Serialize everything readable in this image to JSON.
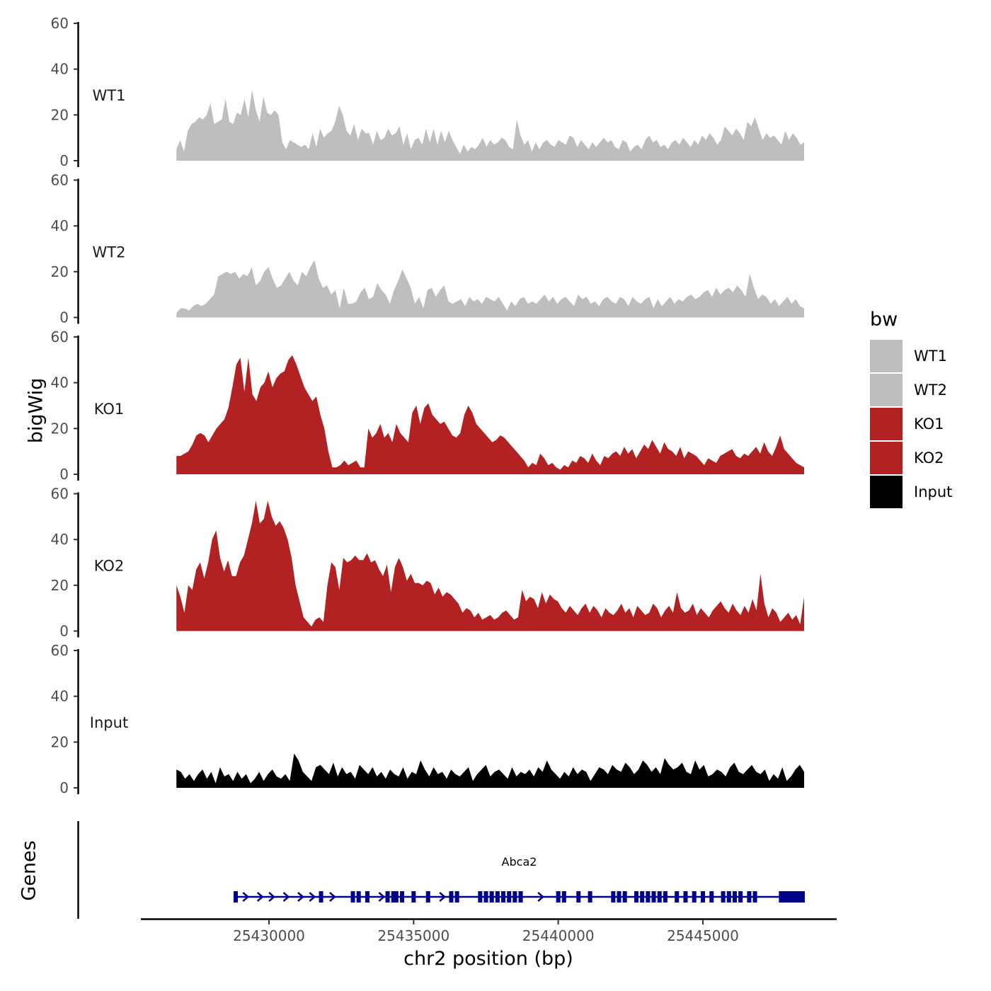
{
  "chart_data": {
    "type": "area",
    "ylabel": "bigWig",
    "xlabel": "chr2 position (bp)",
    "ylim": [
      0,
      60
    ],
    "yticks": [
      0,
      20,
      40,
      60
    ],
    "xlim": [
      25426000,
      25450000
    ],
    "xticks": [
      25430000,
      25435000,
      25440000,
      25445000
    ],
    "xtick_labels": [
      "25430000",
      "25435000",
      "25440000",
      "25445000"
    ],
    "region": [
      25426800,
      25448500
    ],
    "legend": {
      "title": "bw",
      "entries": [
        {
          "label": "WT1",
          "color": "#bebebe"
        },
        {
          "label": "WT2",
          "color": "#bebebe"
        },
        {
          "label": "KO1",
          "color": "#b22222"
        },
        {
          "label": "KO2",
          "color": "#b22222"
        },
        {
          "label": "Input",
          "color": "#000000"
        }
      ]
    },
    "series": [
      {
        "name": "WT1",
        "color": "#bebebe",
        "values": [
          5,
          9,
          4,
          13,
          16,
          17,
          19,
          18,
          20,
          25,
          16,
          17,
          18,
          27,
          17,
          16,
          21,
          20,
          27,
          19,
          31,
          22,
          17,
          28,
          21,
          20,
          22,
          20,
          8,
          5,
          9,
          8,
          7,
          6,
          7,
          5,
          12,
          6,
          14,
          10,
          12,
          13,
          17,
          24,
          20,
          13,
          11,
          16,
          9,
          14,
          12,
          12,
          7,
          13,
          9,
          10,
          14,
          11,
          12,
          15,
          7,
          12,
          5,
          9,
          10,
          7,
          14,
          8,
          14,
          7,
          13,
          8,
          13,
          9,
          6,
          3,
          7,
          4,
          6,
          5,
          7,
          10,
          6,
          9,
          7,
          8,
          10,
          9,
          6,
          5,
          18,
          11,
          7,
          9,
          4,
          8,
          5,
          8,
          9,
          7,
          6,
          9,
          8,
          7,
          11,
          10,
          6,
          9,
          7,
          5,
          8,
          6,
          8,
          10,
          8,
          9,
          6,
          5,
          9,
          8,
          4,
          6,
          7,
          5,
          9,
          11,
          8,
          9,
          6,
          7,
          5,
          8,
          9,
          7,
          10,
          8,
          6,
          9,
          7,
          11,
          9,
          12,
          10,
          7,
          9,
          15,
          13,
          11,
          14,
          12,
          9,
          17,
          15,
          19,
          14,
          9,
          12,
          10,
          11,
          9,
          7,
          13,
          9,
          12,
          10,
          7,
          8
        ]
      },
      {
        "name": "WT2",
        "color": "#bebebe",
        "values": [
          2,
          4,
          4,
          3,
          5,
          6,
          5,
          6,
          8,
          10,
          18,
          19,
          20,
          19,
          20,
          17,
          19,
          18,
          22,
          14,
          16,
          20,
          22,
          17,
          13,
          14,
          17,
          20,
          16,
          14,
          20,
          18,
          22,
          25,
          17,
          13,
          14,
          10,
          12,
          4,
          13,
          6,
          6,
          7,
          11,
          13,
          8,
          9,
          15,
          12,
          10,
          6,
          12,
          16,
          21,
          17,
          13,
          6,
          9,
          4,
          12,
          13,
          9,
          12,
          14,
          7,
          6,
          7,
          8,
          5,
          9,
          7,
          8,
          6,
          9,
          8,
          7,
          9,
          6,
          3,
          7,
          5,
          8,
          9,
          6,
          7,
          6,
          8,
          10,
          7,
          9,
          6,
          8,
          9,
          7,
          5,
          10,
          8,
          9,
          6,
          7,
          5,
          8,
          9,
          7,
          6,
          9,
          8,
          5,
          9,
          7,
          6,
          8,
          9,
          4,
          8,
          5,
          7,
          9,
          6,
          8,
          7,
          9,
          10,
          8,
          9,
          11,
          12,
          9,
          13,
          10,
          12,
          13,
          11,
          14,
          12,
          9,
          19,
          13,
          8,
          10,
          9,
          6,
          8,
          5,
          7,
          9,
          6,
          8,
          5,
          4
        ]
      },
      {
        "name": "KO1",
        "color": "#b22222",
        "values": [
          8,
          8,
          9,
          10,
          13,
          17,
          18,
          17,
          14,
          17,
          20,
          22,
          24,
          29,
          38,
          48,
          51,
          36,
          51,
          35,
          32,
          38,
          40,
          45,
          38,
          42,
          44,
          45,
          50,
          52,
          48,
          43,
          38,
          35,
          32,
          34,
          26,
          20,
          10,
          3,
          3,
          4,
          6,
          4,
          5,
          6,
          3,
          3,
          20,
          16,
          18,
          22,
          16,
          18,
          14,
          22,
          18,
          16,
          14,
          27,
          30,
          22,
          29,
          31,
          26,
          24,
          22,
          23,
          20,
          17,
          16,
          18,
          26,
          30,
          27,
          22,
          20,
          18,
          16,
          14,
          15,
          17,
          16,
          14,
          12,
          10,
          8,
          6,
          3,
          5,
          4,
          9,
          7,
          4,
          5,
          3,
          2,
          4,
          3,
          6,
          5,
          8,
          7,
          5,
          9,
          6,
          4,
          8,
          7,
          9,
          10,
          8,
          12,
          9,
          11,
          7,
          10,
          13,
          11,
          15,
          12,
          9,
          14,
          11,
          10,
          8,
          12,
          7,
          10,
          9,
          8,
          6,
          4,
          7,
          6,
          5,
          8,
          9,
          10,
          11,
          8,
          7,
          9,
          8,
          10,
          12,
          9,
          14,
          10,
          8,
          12,
          17,
          11,
          9,
          7,
          5,
          4,
          3
        ]
      },
      {
        "name": "KO2",
        "color": "#b22222",
        "values": [
          20,
          15,
          8,
          20,
          18,
          27,
          30,
          23,
          30,
          40,
          44,
          32,
          26,
          31,
          24,
          24,
          30,
          33,
          40,
          47,
          57,
          47,
          49,
          57,
          50,
          46,
          48,
          45,
          40,
          32,
          20,
          13,
          6,
          4,
          2,
          5,
          6,
          4,
          20,
          30,
          28,
          18,
          32,
          30,
          31,
          33,
          31,
          31,
          34,
          30,
          31,
          27,
          24,
          29,
          17,
          28,
          32,
          28,
          22,
          25,
          21,
          21,
          20,
          22,
          21,
          16,
          19,
          15,
          17,
          16,
          14,
          12,
          8,
          10,
          9,
          6,
          8,
          5,
          6,
          7,
          5,
          6,
          8,
          9,
          7,
          5,
          6,
          18,
          13,
          15,
          14,
          10,
          17,
          12,
          16,
          14,
          13,
          10,
          8,
          11,
          9,
          7,
          10,
          12,
          8,
          11,
          9,
          6,
          10,
          8,
          7,
          9,
          12,
          8,
          10,
          6,
          11,
          9,
          7,
          8,
          12,
          10,
          6,
          9,
          11,
          8,
          17,
          10,
          8,
          9,
          12,
          7,
          10,
          8,
          6,
          9,
          11,
          13,
          10,
          8,
          12,
          9,
          7,
          11,
          8,
          14,
          9,
          25,
          12,
          6,
          10,
          8,
          4,
          6,
          8,
          5,
          7,
          3,
          15
        ]
      },
      {
        "name": "Input",
        "color": "#000000",
        "values": [
          8,
          7,
          4,
          6,
          3,
          6,
          8,
          4,
          7,
          2,
          9,
          5,
          6,
          3,
          7,
          4,
          6,
          2,
          4,
          7,
          3,
          6,
          8,
          5,
          4,
          6,
          3,
          15,
          12,
          7,
          5,
          3,
          9,
          10,
          8,
          6,
          11,
          5,
          9,
          6,
          7,
          4,
          10,
          8,
          6,
          9,
          5,
          7,
          4,
          8,
          6,
          5,
          9,
          4,
          7,
          6,
          12,
          8,
          5,
          9,
          6,
          7,
          4,
          8,
          6,
          5,
          7,
          9,
          3,
          6,
          8,
          10,
          5,
          7,
          8,
          6,
          4,
          9,
          5,
          7,
          6,
          8,
          5,
          9,
          7,
          12,
          8,
          6,
          4,
          7,
          5,
          9,
          6,
          8,
          7,
          3,
          6,
          9,
          8,
          6,
          10,
          8,
          7,
          11,
          9,
          6,
          8,
          12,
          10,
          7,
          9,
          6,
          13,
          10,
          8,
          9,
          11,
          7,
          6,
          12,
          8,
          10,
          5,
          6,
          8,
          7,
          5,
          9,
          11,
          7,
          6,
          8,
          10,
          7,
          6,
          8,
          3,
          6,
          4,
          9,
          3,
          5,
          8,
          10,
          7
        ]
      }
    ],
    "genes": [
      {
        "name": "Abca2",
        "strand": "+",
        "start": 25428800,
        "end": 25448500,
        "exons": [
          25428850,
          25431800,
          25432900,
          25433100,
          25433400,
          25434100,
          25434300,
          25434400,
          25434600,
          25435000,
          25435500,
          25436300,
          25436500,
          25437300,
          25437500,
          25437700,
          25437900,
          25438100,
          25438300,
          25438500,
          25438700,
          25440000,
          25440200,
          25440700,
          25441100,
          25441900,
          25442100,
          25442300,
          25442700,
          25442900,
          25443100,
          25443300,
          25443500,
          25443700,
          25444100,
          25444400,
          25444700,
          25445000,
          25445300,
          25445700,
          25445900,
          25446100,
          25446300,
          25446600,
          25446800,
          25447700,
          25447800,
          25447900,
          25448000,
          25448100,
          25448200,
          25448300,
          25448400,
          25448450
        ],
        "arrows": [
          25429200,
          25429700,
          25430100,
          25430600,
          25431100,
          25431500,
          25432200,
          25433900,
          25436000,
          25439400
        ]
      }
    ]
  },
  "genes_label": "Genes"
}
